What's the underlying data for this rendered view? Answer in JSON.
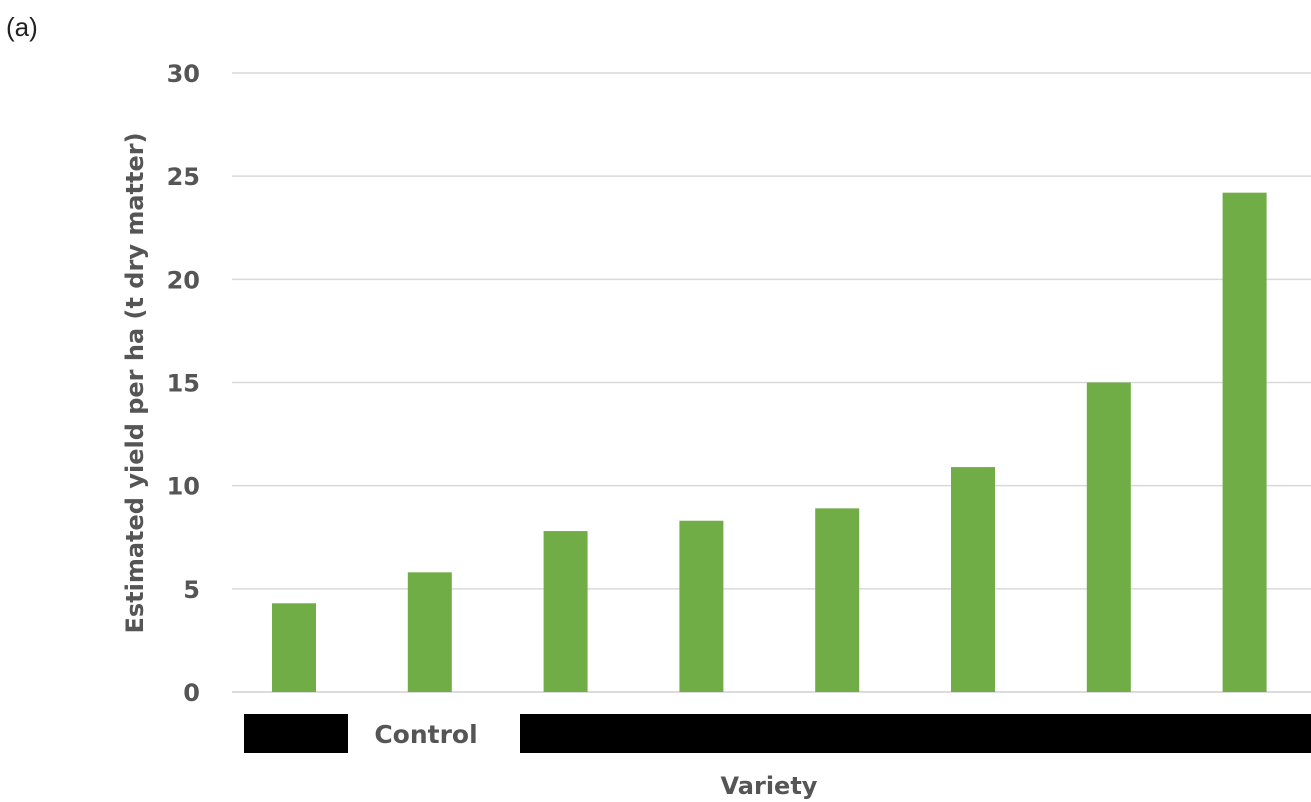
{
  "panel_label": "(a)",
  "colors": {
    "bar": "#70ad47",
    "redaction": "#000000",
    "grid": "#d9d9d9",
    "text": "#555555"
  },
  "chart_data": {
    "type": "bar",
    "title": "",
    "xlabel": "Variety",
    "ylabel": "Estimated yield per ha (t dry matter)",
    "ylim": [
      0,
      30
    ],
    "yticks": [
      0,
      5,
      10,
      15,
      20,
      25,
      30
    ],
    "grid": true,
    "legend": "none",
    "values": [
      4.3,
      5.8,
      7.8,
      8.3,
      8.9,
      10.9,
      15.0,
      24.2
    ],
    "category_labels": {
      "visible_text": "Control",
      "redacted_blocks": 2
    }
  }
}
